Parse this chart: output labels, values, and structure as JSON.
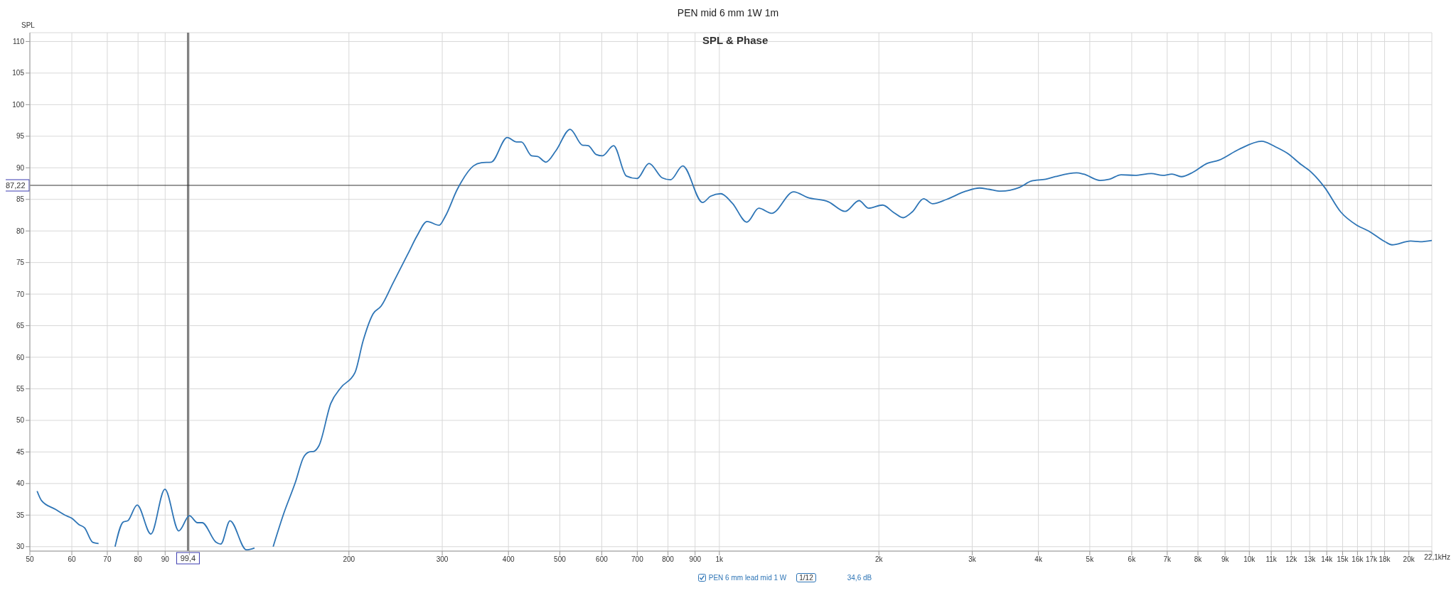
{
  "chart_data": {
    "type": "line",
    "title": "PEN mid 6 mm 1W 1m",
    "ylabel": "SPL",
    "annotations": [
      "SPL & Phase",
      "1/12",
      "34,6 dB"
    ],
    "xlim": [
      50,
      22100
    ],
    "ylim": [
      29.3,
      111.4
    ],
    "log": "x",
    "grid": true,
    "legend": "bottom",
    "marker": "none",
    "line_style": "solid",
    "xticks": [
      50,
      60,
      70,
      80,
      90,
      {
        "value": 100,
        "label": null
      },
      200,
      300,
      400,
      500,
      600,
      700,
      800,
      900,
      {
        "value": 1000,
        "label": "1k"
      },
      {
        "value": 2000,
        "label": "2k"
      },
      {
        "value": 3000,
        "label": "3k"
      },
      {
        "value": 4000,
        "label": "4k"
      },
      {
        "value": 5000,
        "label": "5k"
      },
      {
        "value": 6000,
        "label": "6k"
      },
      {
        "value": 7000,
        "label": "7k"
      },
      {
        "value": 8000,
        "label": "8k"
      },
      {
        "value": 9000,
        "label": "9k"
      },
      {
        "value": 10000,
        "label": "10k"
      },
      {
        "value": 11000,
        "label": "11k"
      },
      {
        "value": 12000,
        "label": "12k"
      },
      {
        "value": 13000,
        "label": "13k"
      },
      {
        "value": 14000,
        "label": "14k"
      },
      {
        "value": 15000,
        "label": "15k"
      },
      {
        "value": 16000,
        "label": "16k"
      },
      {
        "value": 17000,
        "label": "17k"
      },
      {
        "value": 18000,
        "label": "18k"
      },
      {
        "value": 20000,
        "label": "20k"
      },
      {
        "value": 22100,
        "label": null
      }
    ],
    "xlabel": "22,1kHz",
    "yticks": [
      30,
      35,
      40,
      45,
      50,
      55,
      60,
      65,
      70,
      75,
      80,
      85,
      90,
      95,
      100,
      105,
      110
    ],
    "ref_lines": [
      {
        "axis": "x",
        "value": 99.4,
        "label": "99,4",
        "color": "#808080"
      },
      {
        "axis": "y",
        "value": 87.22,
        "label": "87,22",
        "color": "#333333"
      }
    ],
    "series": [
      {
        "name": "PEN 6 mm lead mid 1 W",
        "color": "#2e75b6",
        "x": [
          51.6,
          52.6,
          55.9,
          58.2,
          60,
          61.9,
          63.4,
          65.7,
          67.4,
          70,
          72.4,
          75,
          76.5,
          79.7,
          84.6,
          89.9,
          95.5,
          100,
          103.6,
          105.7,
          112.3,
          114.6,
          119.3,
          128.1,
          132.7,
          138,
          143.9,
          150.6,
          158.5,
          164.1,
          168.3,
          171.8,
          175.6,
          184.9,
          193.2,
          205.4,
          212.7,
          222.2,
          230,
          242.4,
          259.6,
          268.8,
          280.9,
          296,
          303.9,
          320.3,
          343.5,
          355.6,
          371.3,
          397.9,
          414.3,
          423.1,
          442.3,
          454.1,
          470.6,
          491.5,
          523,
          551.2,
          565.8,
          585.8,
          601.7,
          631.6,
          667.6,
          699.3,
          736.7,
          780.6,
          808.9,
          852.9,
          929.6,
          962.8,
          1006,
          1058,
          1127,
          1187,
          1255,
          1381,
          1468,
          1608,
          1727,
          1835,
          1913,
          2032,
          2135,
          2221,
          2311,
          2429,
          2527,
          2685,
          2918,
          3097,
          3225,
          3394,
          3684,
          3880,
          4128,
          4303,
          4721,
          4869,
          5229,
          5446,
          5730,
          6085,
          6530,
          6865,
          7147,
          7442,
          7830,
          8322,
          8757,
          9545,
          10553,
          11216,
          11797,
          12528,
          13051,
          13871,
          14878,
          15960,
          16785,
          18026,
          18587,
          20152,
          20997,
          22100
        ],
        "values": [
          38.8,
          37.3,
          35.9,
          35.0,
          34.5,
          33.5,
          33.0,
          30.7,
          30.5,
          null,
          30.0,
          33.9,
          34.1,
          36.6,
          32.0,
          39.1,
          32.5,
          34.9,
          33.8,
          33.8,
          30.7,
          30.4,
          34.1,
          29.5,
          29.8,
          null,
          30.0,
          35.2,
          40.2,
          44.1,
          45.0,
          45.1,
          46.0,
          52.7,
          55.2,
          57.6,
          62.6,
          66.9,
          68.1,
          71.8,
          76.7,
          79.2,
          81.5,
          80.9,
          82.3,
          86.6,
          90.3,
          90.8,
          90.9,
          94.8,
          94.1,
          94.1,
          91.9,
          91.8,
          90.9,
          92.7,
          96.1,
          93.6,
          93.5,
          92.1,
          91.9,
          93.5,
          88.7,
          88.3,
          90.7,
          88.4,
          88.1,
          90.3,
          84.5,
          85.5,
          85.9,
          84.4,
          81.4,
          83.6,
          82.8,
          86.2,
          85.3,
          84.6,
          83.1,
          84.8,
          83.6,
          84.1,
          82.9,
          82.1,
          83.0,
          85.1,
          84.3,
          85.0,
          86.3,
          86.8,
          86.6,
          86.3,
          86.9,
          87.9,
          88.2,
          88.6,
          89.2,
          89.0,
          88.0,
          88.2,
          88.9,
          88.8,
          89.1,
          88.8,
          89.0,
          88.6,
          89.3,
          90.7,
          91.2,
          92.9,
          94.2,
          93.3,
          92.3,
          90.5,
          89.4,
          86.9,
          83.0,
          80.9,
          80.0,
          78.3,
          77.8,
          78.4,
          78.3,
          78.5
        ]
      }
    ]
  }
}
